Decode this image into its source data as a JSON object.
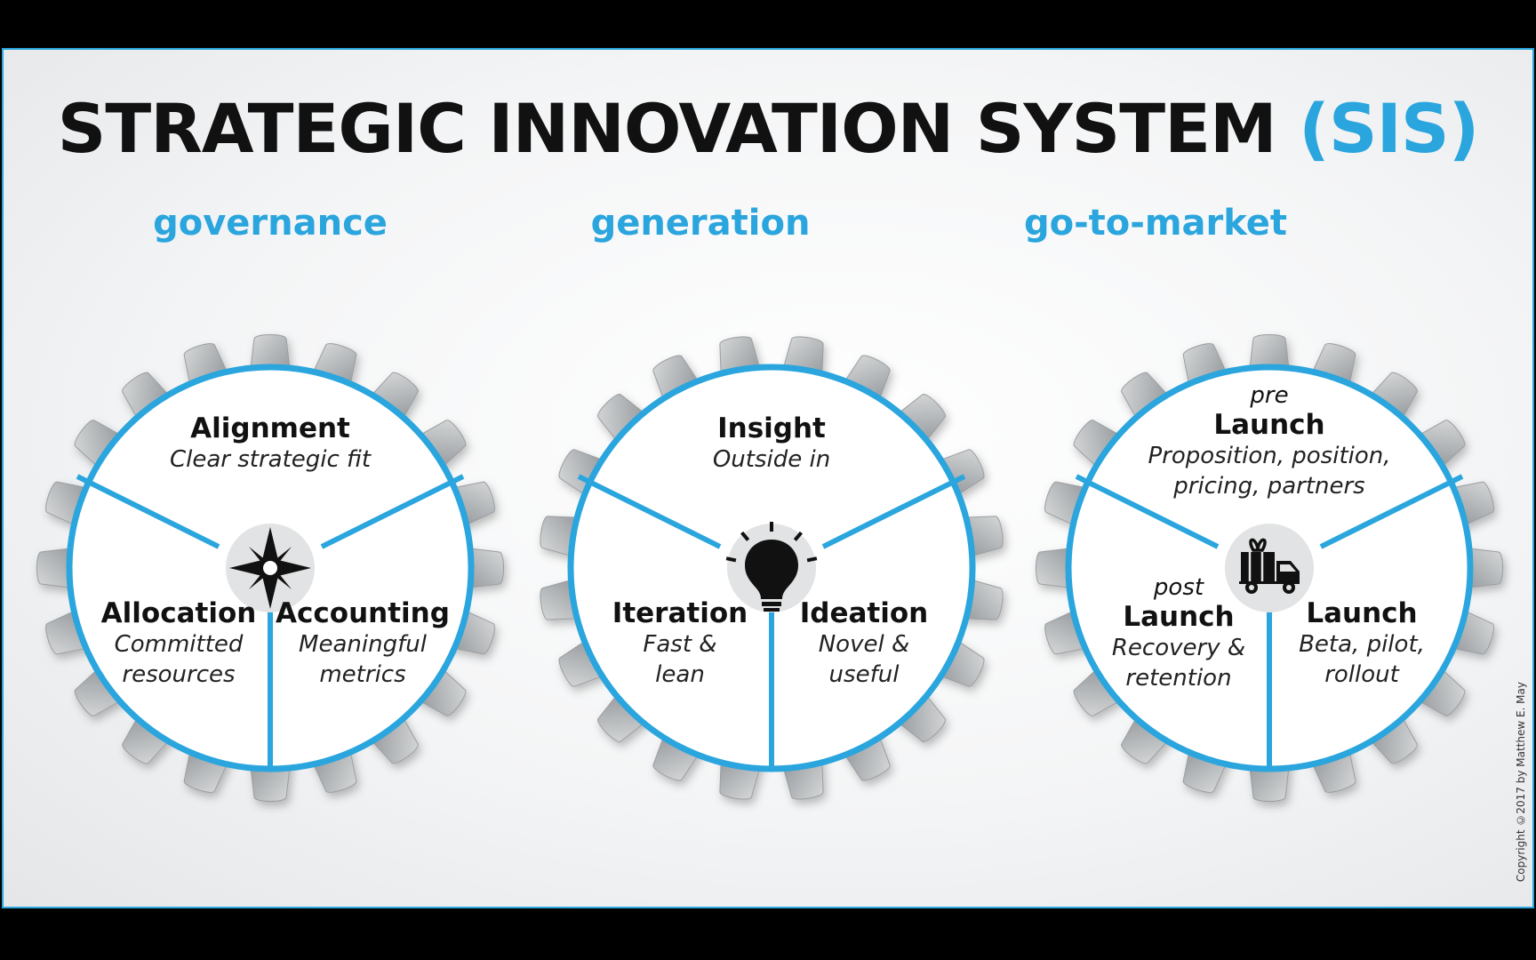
{
  "title": {
    "main": "STRATEGIC INNOVATION SYSTEM",
    "accent": "(SIS)"
  },
  "colors": {
    "accent": "#2aa5dd",
    "gear": "#a9acae",
    "text": "#111111",
    "background": "#f4f5f6"
  },
  "gears": [
    {
      "label": "governance",
      "center_icon": "compass-star-icon",
      "segments": {
        "top": {
          "pre": "",
          "heading": "Alignment",
          "desc": [
            "Clear strategic fit"
          ]
        },
        "left": {
          "pre": "",
          "heading": "Allocation",
          "desc": [
            "Committed",
            "resources"
          ]
        },
        "right": {
          "pre": "",
          "heading": "Accounting",
          "desc": [
            "Meaningful",
            "metrics"
          ]
        }
      }
    },
    {
      "label": "generation",
      "center_icon": "lightbulb-icon",
      "segments": {
        "top": {
          "pre": "",
          "heading": "Insight",
          "desc": [
            "Outside in"
          ]
        },
        "left": {
          "pre": "",
          "heading": "Iteration",
          "desc": [
            "Fast &",
            "lean"
          ]
        },
        "right": {
          "pre": "",
          "heading": "Ideation",
          "desc": [
            "Novel &",
            "useful"
          ]
        }
      }
    },
    {
      "label": "go-to-market",
      "center_icon": "delivery-truck-icon",
      "segments": {
        "top": {
          "pre": "pre",
          "heading": "Launch",
          "desc": [
            "Proposition, position,",
            "pricing, partners"
          ]
        },
        "left": {
          "pre": "post",
          "heading": "Launch",
          "desc": [
            "Recovery &",
            "retention"
          ]
        },
        "right": {
          "pre": "",
          "heading": "Launch",
          "desc": [
            "Beta, pilot,",
            "rollout"
          ]
        }
      }
    }
  ],
  "copyright": "Copyright ©2017 by Matthew E. May"
}
